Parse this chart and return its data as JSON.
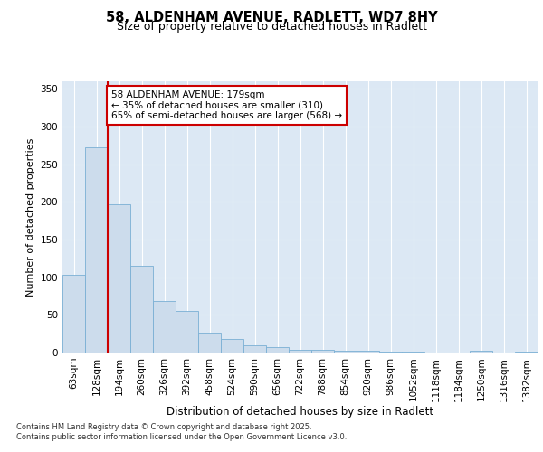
{
  "title_line1": "58, ALDENHAM AVENUE, RADLETT, WD7 8HY",
  "title_line2": "Size of property relative to detached houses in Radlett",
  "xlabel": "Distribution of detached houses by size in Radlett",
  "ylabel": "Number of detached properties",
  "bar_labels": [
    "63sqm",
    "128sqm",
    "194sqm",
    "260sqm",
    "326sqm",
    "392sqm",
    "458sqm",
    "524sqm",
    "590sqm",
    "656sqm",
    "722sqm",
    "788sqm",
    "854sqm",
    "920sqm",
    "986sqm",
    "1052sqm",
    "1118sqm",
    "1184sqm",
    "1250sqm",
    "1316sqm",
    "1382sqm"
  ],
  "bar_values": [
    103,
    272,
    197,
    115,
    68,
    55,
    27,
    18,
    10,
    7,
    4,
    4,
    3,
    2,
    1,
    1,
    0,
    0,
    3,
    0,
    1
  ],
  "bar_color": "#ccdcec",
  "bar_edgecolor": "#7aafd4",
  "fig_background": "#ffffff",
  "plot_background": "#dce8f4",
  "annotation_text": "58 ALDENHAM AVENUE: 179sqm\n← 35% of detached houses are smaller (310)\n65% of semi-detached houses are larger (568) →",
  "annotation_box_facecolor": "#ffffff",
  "annotation_box_edgecolor": "#cc0000",
  "vline_color": "#cc0000",
  "ylim": [
    0,
    360
  ],
  "yticks": [
    0,
    50,
    100,
    150,
    200,
    250,
    300,
    350
  ],
  "footer": "Contains HM Land Registry data © Crown copyright and database right 2025.\nContains public sector information licensed under the Open Government Licence v3.0.",
  "vline_x_index": 1.5
}
